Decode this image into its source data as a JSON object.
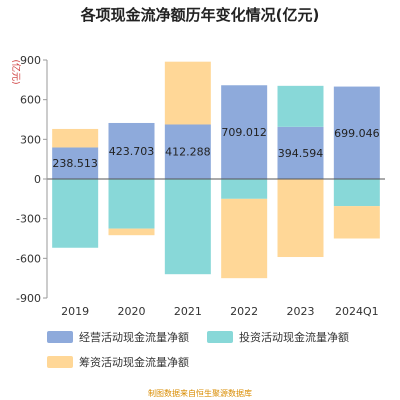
{
  "chart_data": {
    "type": "bar",
    "stacked": true,
    "title": "各项现金流净额历年变化情况(亿元)",
    "ylabel": "(亿元)",
    "xlabel": "",
    "ylim": [
      -900,
      900
    ],
    "yticks": [
      900,
      600,
      300,
      0,
      -300,
      -600,
      -900
    ],
    "categories": [
      "2019",
      "2020",
      "2021",
      "2022",
      "2023",
      "2024Q1"
    ],
    "series": [
      {
        "name": "经营活动现金流量净额",
        "color": "#8eaadb",
        "values": [
          238.513,
          423.703,
          412.288,
          709.012,
          394.594,
          699.046
        ]
      },
      {
        "name": "投资活动现金流量净额",
        "color": "#88d8d8",
        "values": [
          -520,
          -375,
          -720,
          -150,
          310,
          -205
        ]
      },
      {
        "name": "筹资活动现金流量净额",
        "color": "#ffd797",
        "values": [
          140,
          -50,
          475,
          -600,
          -590,
          -245
        ]
      }
    ],
    "data_labels": [
      "238.513",
      "423.703",
      "412.288",
      "709.012",
      "394.594",
      "699.046"
    ],
    "legend_position": "bottom",
    "grid": false
  },
  "footer": {
    "source": "制图数据来自恒生聚源数据库"
  }
}
